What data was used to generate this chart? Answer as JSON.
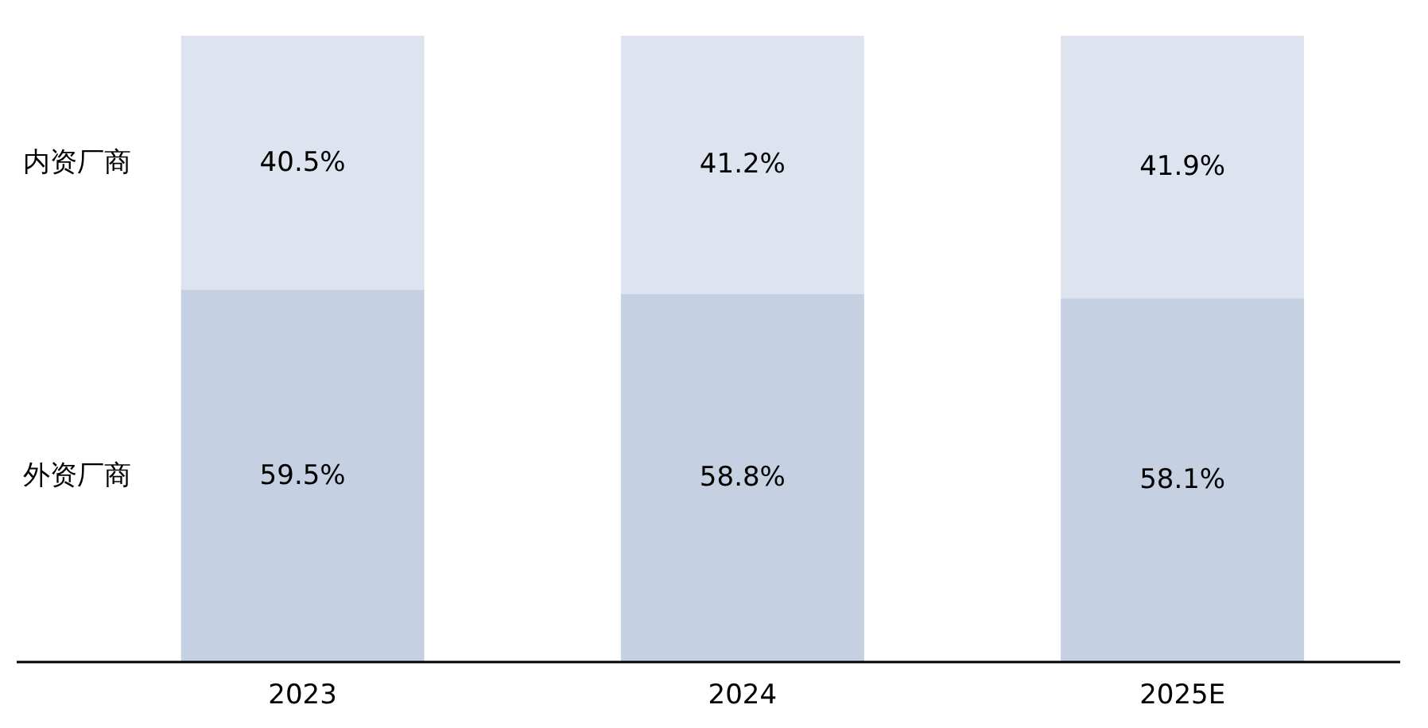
{
  "chart_data": {
    "type": "bar",
    "stacked": true,
    "categories": [
      "2023",
      "2024",
      "2025E"
    ],
    "series": [
      {
        "name": "外资厂商",
        "color": "#c5d0e2",
        "values": [
          59.5,
          58.8,
          58.1
        ],
        "value_labels": [
          "59.5%",
          "58.8%",
          "58.1%"
        ]
      },
      {
        "name": "内资厂商",
        "color": "#dde4ef",
        "values": [
          40.5,
          41.2,
          41.9
        ],
        "value_labels": [
          "40.5%",
          "41.2%",
          "41.9%"
        ]
      }
    ],
    "grid": false,
    "tick_labels": "x"
  }
}
